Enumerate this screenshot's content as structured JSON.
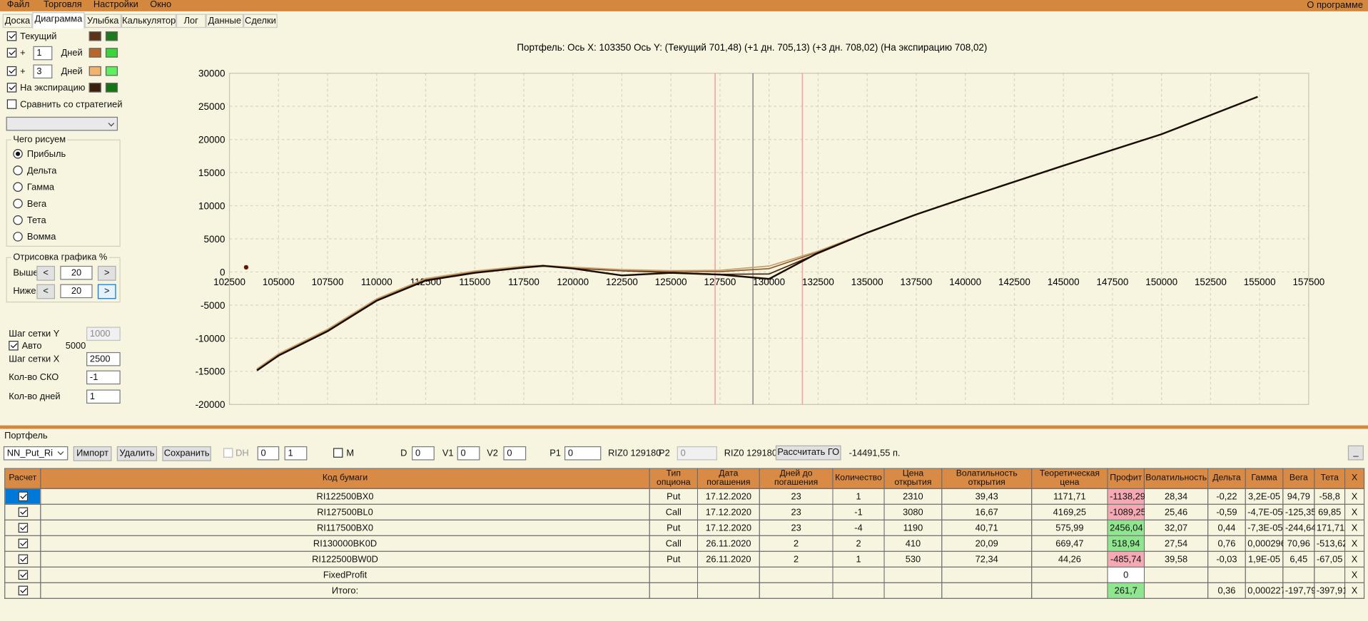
{
  "menu": {
    "items": [
      "Файл",
      "Торговля",
      "Настройки",
      "Окно"
    ],
    "about": "О программе"
  },
  "tabs": {
    "items": [
      "Доска",
      "Диаграмма",
      "Улыбка",
      "Калькулятор",
      "Лог",
      "Данные",
      "Сделки"
    ],
    "active": 1
  },
  "series_panel": {
    "rows": [
      {
        "label": "Текущий",
        "checked": true,
        "colors": [
          "#5c3317",
          "#1e7a1e"
        ]
      },
      {
        "prefix": "+",
        "days": "1",
        "unit": "Дней",
        "checked": true,
        "colors": [
          "#b8662c",
          "#3cd33c"
        ]
      },
      {
        "prefix": "+",
        "days": "3",
        "unit": "Дней",
        "checked": true,
        "colors": [
          "#f2b36a",
          "#5ef05e"
        ]
      },
      {
        "label": "На экспирацию",
        "checked": true,
        "colors": [
          "#3a200c",
          "#157515"
        ]
      }
    ],
    "compare": {
      "label": "Сравнить со стратегией",
      "checked": false
    }
  },
  "draw_group": {
    "title": "Чего рисуем",
    "options": [
      "Прибыль",
      "Дельта",
      "Гамма",
      "Вега",
      "Тета",
      "Вомма"
    ],
    "selected": 0
  },
  "range_group": {
    "title": "Отрисовка графика %",
    "rows": [
      {
        "label": "Выше",
        "value": "20"
      },
      {
        "label": "Ниже",
        "value": "20"
      }
    ],
    "prev": "<",
    "next": ">"
  },
  "grid_settings": {
    "y_step_label": "Шаг сетки Y",
    "y_step": "1000",
    "auto_label": "Авто",
    "auto": true,
    "auto_value": "5000",
    "x_step_label": "Шаг сетки X",
    "x_step": "2500",
    "sko_label": "Кол-во СКО",
    "sko": "-1",
    "days_label": "Кол-во дней",
    "days": "1"
  },
  "chart_data": {
    "type": "line",
    "title": "Портфель:  Ось X:  103350 Ось Y:   (Текущий 701,48)  (+1 дн. 705,13)  (+3 дн. 708,02)  (На экспирацию 708,02)",
    "xlim": [
      102500,
      157500
    ],
    "ylim": [
      -20000,
      30000
    ],
    "xticks": [
      102500,
      105000,
      107500,
      110000,
      112500,
      115000,
      117500,
      120000,
      122500,
      125000,
      127500,
      130000,
      132500,
      135000,
      137500,
      140000,
      142500,
      145000,
      147500,
      150000,
      152500,
      155000,
      157500
    ],
    "yticks": [
      -20000,
      -15000,
      -10000,
      -5000,
      0,
      5000,
      10000,
      15000,
      20000,
      25000,
      30000
    ],
    "grid": true,
    "x": [
      103900,
      105000,
      107500,
      110000,
      112500,
      115000,
      117500,
      118500,
      120000,
      122500,
      125000,
      127500,
      130000,
      132500,
      135000,
      137500,
      140000,
      145000,
      150000,
      154900
    ],
    "series": [
      {
        "color": "#4a2510",
        "values": [
          -14800,
          -12550,
          -8850,
          -4250,
          -1200,
          -50,
          720,
          900,
          560,
          180,
          -80,
          -350,
          -300,
          2800,
          5910,
          8660,
          11155,
          16035,
          20782,
          26435
        ]
      },
      {
        "color": "#8b5a2b",
        "values": [
          -14700,
          -12450,
          -8750,
          -4150,
          -1100,
          50,
          800,
          950,
          640,
          260,
          80,
          50,
          500,
          3000,
          5950,
          8670,
          11160,
          16040,
          20785,
          26440
        ]
      },
      {
        "color": "#c8a070",
        "values": [
          -14600,
          -12350,
          -8650,
          -4050,
          -1000,
          150,
          880,
          1000,
          720,
          350,
          200,
          250,
          900,
          3150,
          5980,
          8690,
          11170,
          16045,
          20788,
          26445
        ]
      },
      {
        "color": "#1a0d05",
        "values": [
          -14870,
          -12630,
          -8950,
          -4340,
          -1300,
          -130,
          660,
          920,
          530,
          -530,
          -130,
          -400,
          -1050,
          2900,
          5920,
          8680,
          11180,
          16050,
          20790,
          26450
        ]
      }
    ],
    "vlines": [
      {
        "value": 127250,
        "color": "#f2a0a0"
      },
      {
        "value": 129180,
        "color": "#909090"
      },
      {
        "value": 131700,
        "color": "#f2a0a0"
      }
    ],
    "cursor": {
      "x": 103350,
      "y": 701.48,
      "color": "#5c1a0a"
    }
  },
  "portfolio": {
    "title": "Портфель",
    "name": "NN_Put_Ri",
    "buttons": [
      "Импорт",
      "Удалить",
      "Сохранить"
    ],
    "dh_label": "DH",
    "spin1": "0",
    "spin2": "1",
    "m_label": "М",
    "d_label": "D",
    "d": "0",
    "v1_label": "V1",
    "v1": "0",
    "v2_label": "V2",
    "v2": "0",
    "p1_label": "P1",
    "p1": "0",
    "p1_ticker": "RIZ0 129180",
    "p2_label": "P2",
    "p2": "0",
    "p2_ticker": "RIZ0 129180",
    "calc": "Рассчитать ГО",
    "margin": "-14491,55 п.",
    "minimize": "_"
  },
  "table": {
    "columns": [
      "Расчет",
      "Код бумаги",
      "Тип опциона",
      "Дата погашения",
      "Дней до погашения",
      "Количество",
      "Цена открытия",
      "Волатильность открытия",
      "Теоретическая цена",
      "Профит",
      "Волатильность",
      "Дельта",
      "Гамма",
      "Вега",
      "Тета",
      "X"
    ],
    "rows": [
      {
        "checked": true,
        "cells": [
          "RI122500BX0",
          "Put",
          "17.12.2020",
          "23",
          "1",
          "2310",
          "39,43",
          "1171,71",
          "-1138,29",
          "28,34",
          "-0,22",
          "3,2E-05",
          "94,79",
          "-58,8",
          "X"
        ]
      },
      {
        "checked": true,
        "cells": [
          "RI127500BL0",
          "Call",
          "17.12.2020",
          "23",
          "-1",
          "3080",
          "16,67",
          "4169,25",
          "-1089,25",
          "25,46",
          "-0,59",
          "-4,7E-05",
          "-125,35",
          "69,85",
          "X"
        ]
      },
      {
        "checked": true,
        "cells": [
          "RI117500BX0",
          "Put",
          "17.12.2020",
          "23",
          "-4",
          "1190",
          "40,71",
          "575,99",
          "2456,04",
          "32,07",
          "0,44",
          "-7,3E-05",
          "-244,64",
          "171,71",
          "X"
        ]
      },
      {
        "checked": true,
        "cells": [
          "RI130000BK0D",
          "Call",
          "26.11.2020",
          "2",
          "2",
          "410",
          "20,09",
          "669,47",
          "518,94",
          "27,54",
          "0,76",
          "0,000296",
          "70,96",
          "-513,62",
          "X"
        ]
      },
      {
        "checked": true,
        "cells": [
          "RI122500BW0D",
          "Put",
          "26.11.2020",
          "2",
          "1",
          "530",
          "72,34",
          "44,26",
          "-485,74",
          "39,58",
          "-0,03",
          "1,9E-05",
          "6,45",
          "-67,05",
          "X"
        ]
      },
      {
        "checked": true,
        "cells": [
          "FixedProfit",
          null,
          null,
          null,
          null,
          null,
          null,
          null,
          "0",
          null,
          null,
          null,
          null,
          null,
          "X"
        ]
      },
      {
        "checked": true,
        "cells": [
          "Итого:",
          null,
          null,
          null,
          null,
          null,
          null,
          null,
          "261,7",
          null,
          "0,36",
          "0,000227",
          "-197,79",
          "-397,91",
          "X"
        ]
      }
    ],
    "profit_column": 8
  }
}
